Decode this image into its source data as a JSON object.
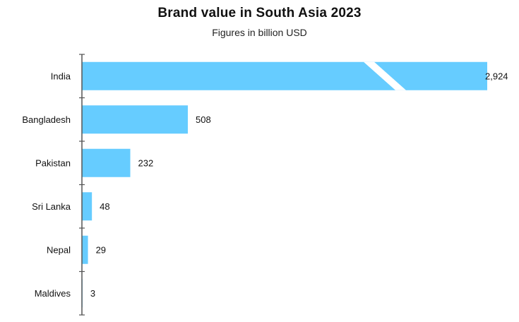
{
  "chart_data": {
    "type": "bar",
    "orientation": "horizontal",
    "title": "Brand value in South Asia 2023",
    "subtitle": "Figures in billion USD",
    "categories": [
      "India",
      "Bangladesh",
      "Pakistan",
      "Sri Lanka",
      "Nepal",
      "Maldives"
    ],
    "values": [
      2924,
      508,
      232,
      48,
      29,
      3
    ],
    "value_labels": [
      "2,924",
      "508",
      "232",
      "48",
      "29",
      "3"
    ],
    "axis_break": {
      "series_index": 0
    },
    "bar_color": "#66CCFF",
    "xlabel": "",
    "ylabel": "",
    "grid": false,
    "legend": "none"
  }
}
